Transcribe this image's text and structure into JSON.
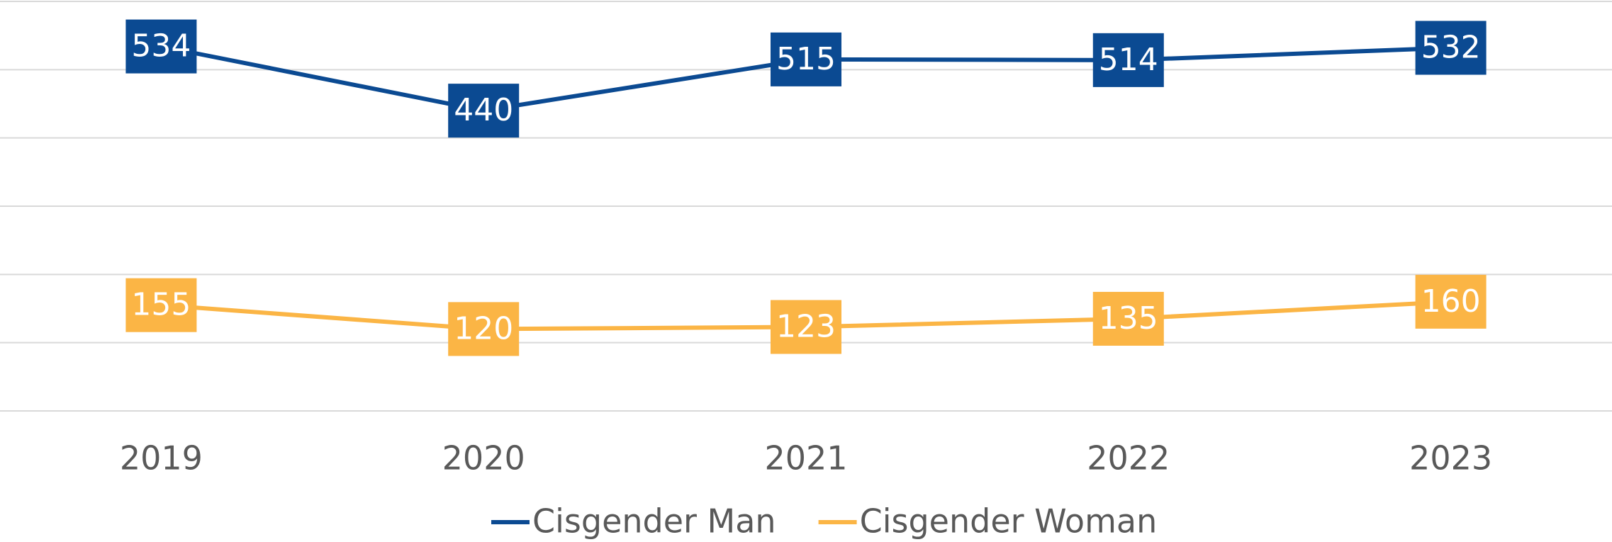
{
  "chart_data": {
    "type": "line",
    "categories": [
      "2019",
      "2020",
      "2021",
      "2022",
      "2023"
    ],
    "series": [
      {
        "name": "Cisgender Man",
        "color": "#0b4a92",
        "values": [
          534,
          440,
          515,
          514,
          532
        ]
      },
      {
        "name": "Cisgender Woman",
        "color": "#fbb545",
        "values": [
          155,
          120,
          123,
          135,
          160
        ]
      }
    ],
    "ylim": [
      0,
      600
    ],
    "yticks": [
      0,
      100,
      200,
      300,
      400,
      500,
      600
    ],
    "grid": true,
    "legend": "bottom"
  }
}
